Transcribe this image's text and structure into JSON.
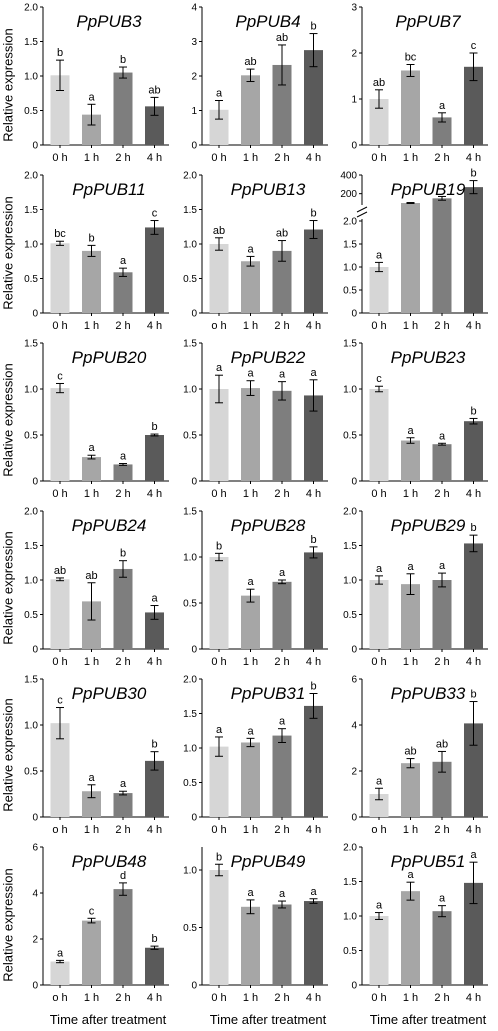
{
  "figure": {
    "ylabel": "Relative expression",
    "xlabel": "Time after treatment"
  },
  "colors": [
    "#d6d6d6",
    "#a6a6a6",
    "#7e7e7e",
    "#5a5a5a"
  ],
  "chart_data": [
    {
      "type": "bar",
      "title": "PpPUB3",
      "categories": [
        "0 h",
        "1 h",
        "2 h",
        "4 h"
      ],
      "values": [
        1.01,
        0.44,
        1.05,
        0.56
      ],
      "errors": [
        0.22,
        0.15,
        0.08,
        0.13
      ],
      "letters": [
        "b",
        "a",
        "b",
        "ab"
      ],
      "ylim": [
        0,
        2
      ],
      "yticks": [
        "0",
        "0.5",
        "1.0",
        "1.5",
        "2.0"
      ]
    },
    {
      "type": "bar",
      "title": "PpPUB4",
      "categories": [
        "0 h",
        "1 h",
        "2 h",
        "4 h"
      ],
      "values": [
        1.02,
        2.02,
        2.32,
        2.75
      ],
      "errors": [
        0.27,
        0.18,
        0.58,
        0.48
      ],
      "letters": [
        "a",
        "ab",
        "ab",
        "b"
      ],
      "ylim": [
        0,
        4
      ],
      "yticks": [
        "0",
        "1",
        "2",
        "3",
        "4"
      ]
    },
    {
      "type": "bar",
      "title": "PpPUB7",
      "categories": [
        "0 h",
        "1 h",
        "2 h",
        "4 h"
      ],
      "values": [
        1.0,
        1.62,
        0.6,
        1.7
      ],
      "errors": [
        0.2,
        0.13,
        0.1,
        0.3
      ],
      "letters": [
        "ab",
        "bc",
        "a",
        "c"
      ],
      "ylim": [
        0,
        3
      ],
      "yticks": [
        "0",
        "1",
        "2",
        "3"
      ]
    },
    {
      "type": "bar",
      "title": "PpPUB11",
      "categories": [
        "0 h",
        "1 h",
        "2 h",
        "4 h"
      ],
      "values": [
        1.01,
        0.9,
        0.59,
        1.24
      ],
      "errors": [
        0.03,
        0.08,
        0.06,
        0.1
      ],
      "letters": [
        "bc",
        "b",
        "a",
        "c"
      ],
      "ylim": [
        0,
        2
      ],
      "yticks": [
        "0",
        "0.5",
        "1.0",
        "1.5",
        "2.0"
      ]
    },
    {
      "type": "bar",
      "title": "PpPUB13",
      "categories": [
        "o h",
        "1 h",
        "2 h",
        "4 h"
      ],
      "values": [
        1.0,
        0.75,
        0.9,
        1.21
      ],
      "errors": [
        0.09,
        0.07,
        0.15,
        0.13
      ],
      "letters": [
        "ab",
        "a",
        "ab",
        "b"
      ],
      "ylim": [
        0,
        2
      ],
      "yticks": [
        "0",
        "0.5",
        "1.0",
        "1.5",
        "2.0"
      ]
    },
    {
      "type": "bar",
      "title": "PpPUB19",
      "categories": [
        "0 h",
        "1 h",
        "2 h",
        "4 h"
      ],
      "values": [
        1.0,
        100,
        150,
        270
      ],
      "errors": [
        0.1,
        5,
        20,
        70
      ],
      "letters": [
        "a",
        "",
        "",
        "b"
      ],
      "broken_axis": true,
      "lower_ylim": [
        0,
        2
      ],
      "upper_ylim": [
        0,
        400
      ],
      "yticks_lower": [
        "0",
        "0.5",
        "1.0",
        "1.5",
        "2.0"
      ],
      "yticks_upper": [
        "200",
        "400"
      ]
    },
    {
      "type": "bar",
      "title": "PpPUB20",
      "categories": [
        "0 h",
        "1 h",
        "2 h",
        "4 h"
      ],
      "values": [
        1.01,
        0.26,
        0.18,
        0.5
      ],
      "errors": [
        0.05,
        0.02,
        0.01,
        0.01
      ],
      "letters": [
        "c",
        "a",
        "a",
        "b"
      ],
      "ylim": [
        0,
        1.5
      ],
      "yticks": [
        "0",
        "0.5",
        "1.0",
        "1.5"
      ]
    },
    {
      "type": "bar",
      "title": "PpPUB22",
      "categories": [
        "0 h",
        "1 h",
        "2 h",
        "4 h"
      ],
      "values": [
        1.0,
        1.01,
        0.98,
        0.93
      ],
      "errors": [
        0.15,
        0.08,
        0.1,
        0.17
      ],
      "letters": [
        "a",
        "a",
        "a",
        "a"
      ],
      "ylim": [
        0,
        1.5
      ],
      "yticks": [
        "0",
        "0.5",
        "1.0",
        "1.5"
      ]
    },
    {
      "type": "bar",
      "title": "PpPUB23",
      "categories": [
        "0 h",
        "1 h",
        "2 h",
        "4 h"
      ],
      "values": [
        1.0,
        0.44,
        0.4,
        0.65
      ],
      "errors": [
        0.03,
        0.03,
        0.01,
        0.03
      ],
      "letters": [
        "c",
        "a",
        "a",
        "b"
      ],
      "ylim": [
        0,
        1.5
      ],
      "yticks": [
        "0",
        "0.5",
        "1.0",
        "1.5"
      ]
    },
    {
      "type": "bar",
      "title": "PpPUB24",
      "categories": [
        "0 h",
        "1 h",
        "2 h",
        "4 h"
      ],
      "values": [
        1.01,
        0.69,
        1.16,
        0.53
      ],
      "errors": [
        0.02,
        0.27,
        0.12,
        0.1
      ],
      "letters": [
        "ab",
        "ab",
        "b",
        "a"
      ],
      "ylim": [
        0,
        2
      ],
      "yticks": [
        "0",
        "0.5",
        "1.0",
        "1.5",
        "2.0"
      ]
    },
    {
      "type": "bar",
      "title": "PpPUB28",
      "categories": [
        "0 h",
        "1 h",
        "2 h",
        "4 h"
      ],
      "values": [
        1.0,
        0.58,
        0.73,
        1.05
      ],
      "errors": [
        0.04,
        0.07,
        0.02,
        0.06
      ],
      "letters": [
        "b",
        "a",
        "a",
        "b"
      ],
      "ylim": [
        0,
        1.5
      ],
      "yticks": [
        "0",
        "0.5",
        "1.0",
        "1.5"
      ]
    },
    {
      "type": "bar",
      "title": "PpPUB29",
      "categories": [
        "0 h",
        "1 h",
        "2 h",
        "4 h"
      ],
      "values": [
        1.0,
        0.94,
        1.0,
        1.53
      ],
      "errors": [
        0.06,
        0.15,
        0.1,
        0.12
      ],
      "letters": [
        "a",
        "a",
        "a",
        "b"
      ],
      "ylim": [
        0,
        2
      ],
      "yticks": [
        "0",
        "0.5",
        "1.0",
        "1.5",
        "2.0"
      ]
    },
    {
      "type": "bar",
      "title": "PpPUB30",
      "categories": [
        "o h",
        "1 h",
        "2 h",
        "4 h"
      ],
      "values": [
        1.02,
        0.28,
        0.26,
        0.61
      ],
      "errors": [
        0.17,
        0.07,
        0.02,
        0.1
      ],
      "letters": [
        "c",
        "a",
        "a",
        "b"
      ],
      "ylim": [
        0,
        1.5
      ],
      "yticks": [
        "0",
        "0.5",
        "1.0",
        "1.5"
      ]
    },
    {
      "type": "bar",
      "title": "PpPUB31",
      "categories": [
        "0 h",
        "1 h",
        "2 h",
        "4 h"
      ],
      "values": [
        1.02,
        1.08,
        1.18,
        1.61
      ],
      "errors": [
        0.14,
        0.06,
        0.1,
        0.18
      ],
      "letters": [
        "a",
        "a",
        "a",
        "b"
      ],
      "ylim": [
        0,
        2
      ],
      "yticks": [
        "0",
        "0.5",
        "1.0",
        "1.5",
        "2.0"
      ]
    },
    {
      "type": "bar",
      "title": "PpPUB33",
      "categories": [
        "o h",
        "1 h",
        "2 h",
        "4 h"
      ],
      "values": [
        1.0,
        2.34,
        2.4,
        4.07
      ],
      "errors": [
        0.25,
        0.2,
        0.45,
        0.95
      ],
      "letters": [
        "a",
        "ab",
        "ab",
        "b"
      ],
      "ylim": [
        0,
        6
      ],
      "yticks": [
        "0",
        "2",
        "4",
        "6"
      ]
    },
    {
      "type": "bar",
      "title": "PpPUB48",
      "categories": [
        "o h",
        "1 h",
        "2 h",
        "4 h"
      ],
      "values": [
        1.02,
        2.8,
        4.17,
        1.62
      ],
      "errors": [
        0.05,
        0.1,
        0.27,
        0.07
      ],
      "letters": [
        "a",
        "c",
        "d",
        "b"
      ],
      "ylim": [
        0,
        6
      ],
      "yticks": [
        "0",
        "2",
        "4",
        "6"
      ]
    },
    {
      "type": "bar",
      "title": "PpPUB49",
      "categories": [
        "0 h",
        "1 h",
        "2 h",
        "4 h"
      ],
      "values": [
        1.0,
        0.68,
        0.7,
        0.73
      ],
      "errors": [
        0.05,
        0.06,
        0.03,
        0.02
      ],
      "letters": [
        "b",
        "a",
        "a",
        "a"
      ],
      "ylim": [
        0,
        1.2
      ],
      "yticks": [
        "0",
        "0.5",
        "1.0"
      ]
    },
    {
      "type": "bar",
      "title": "PpPUB51",
      "categories": [
        "0 h",
        "1 h",
        "2 h",
        "4 h"
      ],
      "values": [
        1.0,
        1.36,
        1.07,
        1.48
      ],
      "errors": [
        0.05,
        0.13,
        0.08,
        0.3
      ],
      "letters": [
        "a",
        "a",
        "a",
        "a"
      ],
      "ylim": [
        0,
        2
      ],
      "yticks": [
        "0",
        "0.5",
        "1.0",
        "1.5",
        "2.0"
      ]
    }
  ]
}
